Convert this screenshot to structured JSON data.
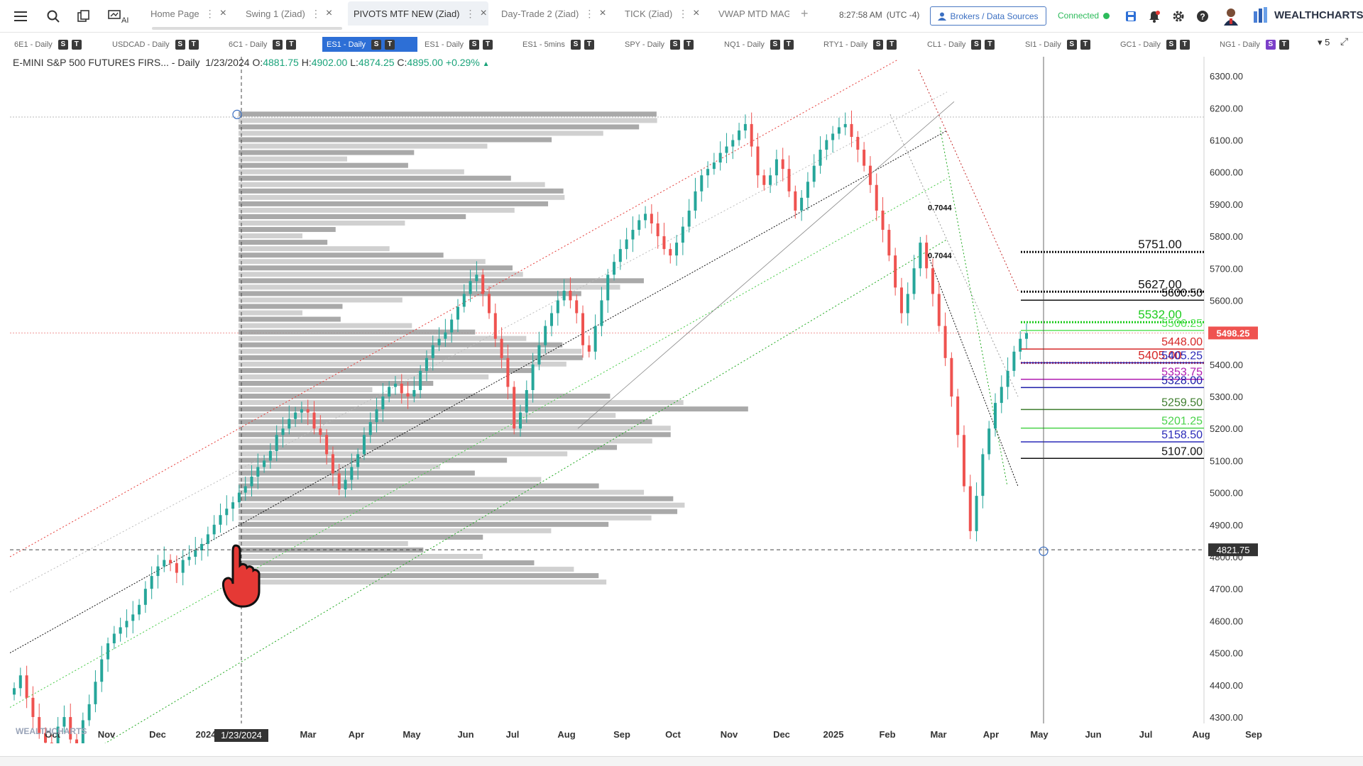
{
  "topbar": {
    "tabs": [
      {
        "label": "Home Page",
        "active": false
      },
      {
        "label": "Swing 1 (Ziad)",
        "active": false
      },
      {
        "label": "PIVOTS MTF NEW (Ziad)",
        "active": true
      },
      {
        "label": "Day-Trade 2 (Ziad)",
        "active": false
      },
      {
        "label": "TICK (Ziad)",
        "active": false
      },
      {
        "label": "VWAP MTD MAG",
        "active": false
      }
    ],
    "add_tab": "+",
    "clock_time": "8:27:58 AM",
    "clock_tz": "(UTC -4)",
    "brokers_label": "Brokers / Data Sources",
    "connection_status": "Connected",
    "brand": "WEALTHCHARTS",
    "icons": [
      "menu-icon",
      "search-icon",
      "copy-icon",
      "ai-icon",
      "save-icon",
      "bell-icon",
      "gear-icon",
      "help-icon",
      "avatar"
    ]
  },
  "watchlist": {
    "items": [
      {
        "label": "6E1 - Daily",
        "active": false
      },
      {
        "label": "USDCAD - Daily",
        "active": false
      },
      {
        "label": "6C1 - Daily",
        "active": false
      },
      {
        "label": "ES1 - Daily",
        "active": true
      },
      {
        "label": "ES1 - Daily",
        "active": false
      },
      {
        "label": "ES1 - 5mins",
        "active": false
      },
      {
        "label": "SPY - Daily",
        "active": false
      },
      {
        "label": "NQ1 - Daily",
        "active": false
      },
      {
        "label": "RTY1 - Daily",
        "active": false
      },
      {
        "label": "CL1 - Daily",
        "active": false
      },
      {
        "label": "SI1 - Daily",
        "active": false
      },
      {
        "label": "GC1 - Daily",
        "active": false
      },
      {
        "label": "NG1 - Daily",
        "active": false
      }
    ],
    "badge_s": "S",
    "badge_t": "T",
    "more_label": "▾ 5"
  },
  "legend": {
    "symbol": "E-MINI S&P 500 FUTURES FIRS... - Daily",
    "date": "1/23/2024",
    "o_label": "O:",
    "o": "4881.75",
    "h_label": "H:",
    "h": "4902.00",
    "l_label": "L:",
    "l": "4874.25",
    "c_label": "C:",
    "c": "4895.00",
    "change": "+0.29%",
    "arrow": "▲"
  },
  "watermark": "WEALTHCHARTS",
  "chart_data": {
    "type": "candlestick",
    "instrument": "E-MINI S&P 500 FUTURES FIRS... - Daily",
    "x_labels": [
      "Oct",
      "Nov",
      "Dec",
      "2024",
      "Mar",
      "Apr",
      "May",
      "Jun",
      "Jul",
      "Aug",
      "Sep",
      "Oct",
      "Nov",
      "Dec",
      "2025",
      "Feb",
      "Mar",
      "Apr",
      "May",
      "Jun",
      "Jul",
      "Aug",
      "Sep"
    ],
    "y_ticks": [
      4300,
      4400,
      4500,
      4600,
      4700,
      4800,
      4900,
      5000,
      5100,
      5200,
      5300,
      5400,
      5500,
      5600,
      5700,
      5800,
      5900,
      6000,
      6100,
      6200,
      6300
    ],
    "ylim": [
      4280,
      6360
    ],
    "crosshair_date_label": "1/23/2024",
    "last_price_tag": "5498.25",
    "crosshair_price_tag": "4821.75",
    "fib_labels": [
      "0.7044",
      "0.7044"
    ],
    "closes": [
      4390,
      4430,
      4360,
      4300,
      4250,
      4220,
      4210,
      4270,
      4300,
      4230,
      4190,
      4290,
      4340,
      4410,
      4480,
      4530,
      4560,
      4580,
      4600,
      4620,
      4650,
      4700,
      4740,
      4770,
      4790,
      4780,
      4750,
      4790,
      4800,
      4820,
      4840,
      4870,
      4900,
      4930,
      4950,
      4970,
      5000,
      5020,
      5050,
      5080,
      5100,
      5130,
      5180,
      5200,
      5230,
      5250,
      5260,
      5250,
      5200,
      5180,
      5120,
      5060,
      5010,
      5040,
      5080,
      5120,
      5180,
      5220,
      5260,
      5300,
      5330,
      5340,
      5310,
      5300,
      5320,
      5380,
      5420,
      5460,
      5480,
      5500,
      5540,
      5580,
      5620,
      5660,
      5680,
      5620,
      5560,
      5480,
      5420,
      5330,
      5200,
      5250,
      5320,
      5400,
      5460,
      5520,
      5560,
      5600,
      5630,
      5600,
      5560,
      5460,
      5440,
      5520,
      5600,
      5680,
      5720,
      5760,
      5790,
      5820,
      5850,
      5870,
      5840,
      5800,
      5760,
      5740,
      5780,
      5830,
      5880,
      5940,
      5990,
      6010,
      6030,
      6060,
      6080,
      6100,
      6130,
      6150,
      6080,
      5990,
      5960,
      5990,
      6040,
      6010,
      5940,
      5880,
      5920,
      5970,
      6020,
      6070,
      6100,
      6120,
      6140,
      6150,
      6110,
      6070,
      6020,
      5960,
      5880,
      5820,
      5740,
      5640,
      5560,
      5620,
      5700,
      5780,
      5700,
      5620,
      5520,
      5420,
      5300,
      5180,
      5020,
      4880,
      4990,
      5120,
      5200,
      5280,
      5330,
      5380,
      5440,
      5480,
      5498
    ],
    "horizontal_levels": [
      {
        "value": 5751.0,
        "label": "5751.00",
        "color": "#111111"
      },
      {
        "value": 5627.0,
        "label": "5627.00",
        "color": "#111111"
      },
      {
        "value": 5600.5,
        "label": "5600.50",
        "color": "#111111"
      },
      {
        "value": 5532.0,
        "label": "5532.00",
        "color": "#1ccc1c"
      },
      {
        "value": 5506.25,
        "label": "5506.25",
        "color": "#5be35b"
      },
      {
        "value": 5448.0,
        "label": "5448.00",
        "color": "#d62828"
      },
      {
        "value": 5405.0,
        "label": "5405.00",
        "color": "#d62828"
      },
      {
        "value": 5405.25,
        "label": "5405.25",
        "color": "#2a2ab8"
      },
      {
        "value": 5353.75,
        "label": "5353.75",
        "color": "#b01bb0"
      },
      {
        "value": 5328.0,
        "label": "5328.00",
        "color": "#1b1ba8"
      },
      {
        "value": 5259.5,
        "label": "5259.50",
        "color": "#3e7d2e"
      },
      {
        "value": 5201.25,
        "label": "5201.25",
        "color": "#4ad34a"
      },
      {
        "value": 5158.5,
        "label": "5158.50",
        "color": "#2a2ab8"
      },
      {
        "value": 5107.0,
        "label": "5107.00",
        "color": "#111111"
      }
    ]
  },
  "colors": {
    "up": "#26a69a",
    "down": "#ef5350",
    "price_tag": "#ef5350",
    "active_tab": "#2d6fd6",
    "connected": "#2dbb5b",
    "accent": "#3b6fc2"
  }
}
